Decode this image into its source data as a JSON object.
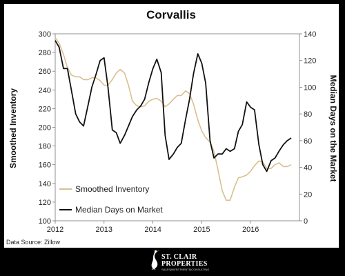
{
  "chart_data": {
    "type": "line",
    "title": "Corvallis",
    "ylabel_left": "Smoothed Inventory",
    "ylabel_right": "Median Days on the Market",
    "y_left_lim": [
      100,
      300
    ],
    "y_left_ticks": [
      "100",
      "120",
      "140",
      "160",
      "180",
      "200",
      "220",
      "240",
      "260",
      "280",
      "300"
    ],
    "y_right_lim": [
      0,
      140
    ],
    "y_right_ticks": [
      "0",
      "20",
      "40",
      "60",
      "80",
      "100",
      "120",
      "140"
    ],
    "x_lim": [
      2012,
      2017
    ],
    "x_ticks": [
      "2012",
      "2013",
      "2014",
      "2015",
      "2016"
    ],
    "grid": false,
    "legend_position": "bottom-left",
    "series": [
      {
        "name": "Smoothed Inventory",
        "axis": "left",
        "color": "#d8bf8e",
        "x": [
          2012.0,
          2012.08,
          2012.17,
          2012.25,
          2012.33,
          2012.42,
          2012.5,
          2012.58,
          2012.67,
          2012.75,
          2012.83,
          2012.92,
          2013.0,
          2013.08,
          2013.17,
          2013.25,
          2013.33,
          2013.42,
          2013.5,
          2013.58,
          2013.67,
          2013.75,
          2013.83,
          2013.92,
          2014.0,
          2014.08,
          2014.17,
          2014.25,
          2014.33,
          2014.42,
          2014.5,
          2014.58,
          2014.67,
          2014.75,
          2014.83,
          2014.92,
          2015.0,
          2015.08,
          2015.17,
          2015.25,
          2015.33,
          2015.42,
          2015.5,
          2015.58,
          2015.67,
          2015.75,
          2015.83,
          2015.92,
          2016.0,
          2016.08,
          2016.17,
          2016.25,
          2016.33,
          2016.42,
          2016.5,
          2016.58,
          2016.67,
          2016.75,
          2016.83
        ],
        "values": [
          296,
          290,
          278,
          264,
          256,
          254,
          254,
          251,
          251,
          253,
          253,
          250,
          245,
          245,
          251,
          258,
          262,
          258,
          245,
          228,
          223,
          222,
          223,
          228,
          230,
          231,
          228,
          222,
          225,
          230,
          234,
          234,
          239,
          236,
          225,
          208,
          196,
          189,
          184,
          174,
          155,
          132,
          122,
          122,
          136,
          146,
          147,
          149,
          153,
          159,
          164,
          163,
          156,
          156,
          160,
          162,
          158,
          158,
          160
        ]
      },
      {
        "name": "Median Days on Market",
        "axis": "right",
        "color": "#111111",
        "x": [
          2012.0,
          2012.08,
          2012.17,
          2012.25,
          2012.33,
          2012.42,
          2012.5,
          2012.58,
          2012.67,
          2012.75,
          2012.83,
          2012.92,
          2013.0,
          2013.08,
          2013.17,
          2013.25,
          2013.33,
          2013.42,
          2013.5,
          2013.58,
          2013.67,
          2013.75,
          2013.83,
          2013.92,
          2014.0,
          2014.08,
          2014.17,
          2014.25,
          2014.33,
          2014.42,
          2014.5,
          2014.58,
          2014.67,
          2014.75,
          2014.83,
          2014.92,
          2015.0,
          2015.08,
          2015.17,
          2015.25,
          2015.33,
          2015.42,
          2015.5,
          2015.58,
          2015.67,
          2015.75,
          2015.83,
          2015.92,
          2016.0,
          2016.08,
          2016.17,
          2016.25,
          2016.33,
          2016.42,
          2016.5,
          2016.58,
          2016.67,
          2016.75,
          2016.83
        ],
        "values": [
          135,
          130,
          114,
          114,
          98,
          80,
          74,
          71,
          86,
          100,
          109,
          120,
          122,
          100,
          68,
          66,
          58,
          64,
          71,
          78,
          83,
          86,
          91,
          104,
          114,
          121,
          111,
          64,
          46,
          50,
          55,
          58,
          76,
          91,
          110,
          125,
          118,
          103,
          60,
          47,
          50,
          50,
          54,
          52,
          54,
          67,
          72,
          89,
          85,
          83,
          57,
          42,
          37,
          45,
          47,
          52,
          57,
          60,
          62
        ]
      }
    ]
  },
  "source_note": "Data Source: Zillow",
  "logo": {
    "name_line1": "ST. CLAIR",
    "name_line2": "PROPERTIES",
    "tagline": "SALES|INVESTMENTS|CONSULTING"
  }
}
